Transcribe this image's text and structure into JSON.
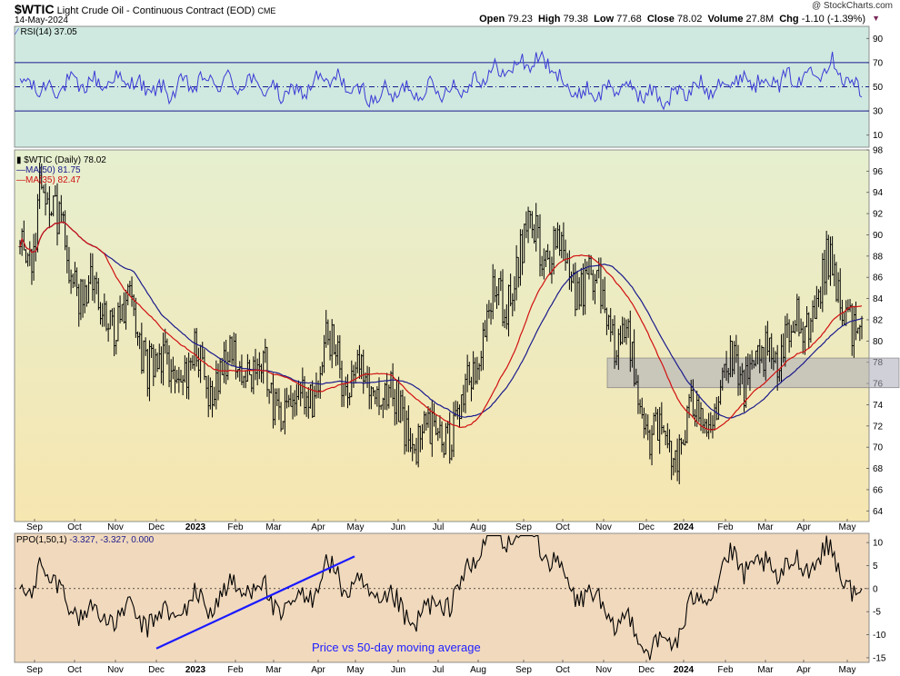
{
  "header": {
    "symbol": "$WTIC",
    "name": "Light Crude Oil - Continuous Contract (EOD)",
    "exchange": "CME",
    "date": "14-May-2024",
    "watermark": "@ StockCharts.com",
    "open_label": "Open",
    "open": "79.23",
    "high_label": "High",
    "high": "79.38",
    "low_label": "Low",
    "low": "77.68",
    "close_label": "Close",
    "close": "78.02",
    "volume_label": "Volume",
    "volume": "27.8M",
    "chg_label": "Chg",
    "chg": "-1.10 (-1.39%)"
  },
  "legends": {
    "rsi": "RSI(14) 37.05",
    "price": "$WTIC (Daily) 78.02",
    "ma50": "MA(50) 81.75",
    "ma35": "MA(35) 82.47",
    "ppo_name": "PPO(1,50,1)",
    "ppo_vals": "-3.327, -3.327, 0.000"
  },
  "colors": {
    "rsi_bg": "#cfe9e0",
    "price_bg_top": "#e6efcf",
    "price_bg_bottom": "#f6e6b0",
    "ppo_bg": "#f1d9bd",
    "rsi_line": "#3b3bd6",
    "ma50": "#1a1a8c",
    "ma35": "#d01010",
    "bars": "#000000",
    "annotation": "#2020ff",
    "zone": "#a9a9b8"
  },
  "chart_data": [
    {
      "type": "line",
      "name_label": "RSI(14)",
      "ylim": [
        0,
        100
      ],
      "yticks": [
        10,
        30,
        50,
        70,
        90
      ],
      "hlines": [
        30,
        50,
        70
      ],
      "x": [
        "Sep",
        "Oct",
        "Nov",
        "Dec",
        "2023",
        "Feb",
        "Mar",
        "Apr",
        "May",
        "Jun",
        "Jul",
        "Aug",
        "Sep",
        "Oct",
        "Nov",
        "Dec",
        "2024",
        "Feb",
        "Mar",
        "Apr",
        "May"
      ],
      "series": [
        {
          "name": "RSI(14)",
          "values": [
            48,
            52,
            55,
            46,
            54,
            53,
            44,
            56,
            42,
            47,
            48,
            62,
            72,
            44,
            49,
            41,
            50,
            56,
            55,
            68,
            37
          ]
        }
      ]
    },
    {
      "type": "line",
      "ylim": [
        63,
        98
      ],
      "yticks": [
        64,
        66,
        68,
        70,
        72,
        74,
        76,
        78,
        80,
        82,
        84,
        86,
        88,
        90,
        92,
        94,
        96,
        98
      ],
      "x": [
        "Sep",
        "Oct",
        "Nov",
        "Dec",
        "2023",
        "Feb",
        "Mar",
        "Apr",
        "May",
        "Jun",
        "Jul",
        "Aug",
        "Sep",
        "Oct",
        "Nov",
        "Dec",
        "2024",
        "Feb",
        "Mar",
        "Apr",
        "May"
      ],
      "x_bold": [
        "2023",
        "2024"
      ],
      "series": [
        {
          "name": "$WTIC (Daily)",
          "values": [
            94,
            86,
            83,
            76,
            78,
            78,
            72,
            80,
            74,
            71,
            73,
            82,
            91,
            86,
            79,
            71,
            73,
            77,
            81,
            85,
            78
          ]
        },
        {
          "name": "MA(50)",
          "values": [
            94,
            89,
            85,
            82,
            79,
            79,
            77,
            75,
            77,
            74,
            72,
            76,
            82,
            85,
            84,
            78,
            73,
            74,
            77,
            81,
            81.75
          ]
        },
        {
          "name": "MA(35)",
          "values": [
            92,
            87,
            84,
            81,
            79,
            78,
            76,
            77,
            76,
            73,
            71,
            79,
            86,
            87,
            82,
            75,
            73,
            75,
            79,
            83,
            82.47
          ]
        }
      ],
      "zone": [
        75.6,
        78.4
      ]
    },
    {
      "type": "line",
      "name_label": "PPO(1,50,1)",
      "ylim": [
        -16,
        12
      ],
      "yticks": [
        -15,
        -10,
        -5,
        0,
        5,
        10
      ],
      "x": [
        "Sep",
        "Oct",
        "Nov",
        "Dec",
        "2023",
        "Feb",
        "Mar",
        "Apr",
        "May",
        "Jun",
        "Jul",
        "Aug",
        "Sep",
        "Oct",
        "Nov",
        "Dec",
        "2024",
        "Feb",
        "Mar",
        "Apr",
        "May"
      ],
      "series": [
        {
          "name": "PPO(1,50,1)",
          "values": [
            -2,
            -11,
            3,
            -9,
            1,
            2,
            -7,
            4,
            -8,
            -2,
            1,
            8,
            10,
            3,
            -4,
            -9,
            -2,
            2,
            4,
            8,
            -3.327
          ]
        }
      ],
      "trendline": {
        "from": {
          "x": "Dec",
          "y": -13
        },
        "to": {
          "x": "Apr",
          "y": 7
        }
      },
      "annotation": "Price vs 50-day moving average"
    }
  ]
}
